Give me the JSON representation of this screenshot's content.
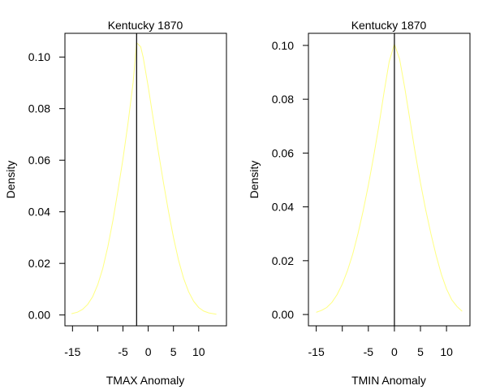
{
  "chart_data": [
    {
      "type": "line",
      "title": "Kentucky 1870",
      "xlabel": "TMAX Anomaly",
      "ylabel": "Density",
      "xlim": [
        -16.5,
        15.5
      ],
      "ylim": [
        -0.0042,
        0.1092
      ],
      "x_ticks": [
        -15,
        -10,
        -5,
        0,
        5,
        10
      ],
      "x_tick_labels": [
        "-15",
        "",
        "-5",
        "0",
        "5",
        "10"
      ],
      "y_ticks": [
        0.0,
        0.02,
        0.04,
        0.06,
        0.08,
        0.1
      ],
      "y_tick_labels": [
        "0.00",
        "0.02",
        "0.04",
        "0.06",
        "0.08",
        "0.10"
      ],
      "vline_x": -2.3,
      "curve_color": "#ffff80",
      "series": [
        {
          "x": [
            -15.2,
            -14,
            -13,
            -12,
            -11,
            -10,
            -9,
            -8,
            -7,
            -6,
            -5,
            -4,
            -3,
            -2.3,
            -1.5,
            -1,
            0,
            1,
            2,
            3,
            4,
            5,
            6,
            7,
            8,
            9,
            10,
            11,
            12,
            13.5
          ],
          "values": [
            0.0005,
            0.0011,
            0.0022,
            0.0041,
            0.0071,
            0.0117,
            0.018,
            0.0265,
            0.0366,
            0.0482,
            0.0605,
            0.0743,
            0.0901,
            0.1055,
            0.104,
            0.0999,
            0.0885,
            0.076,
            0.0635,
            0.0515,
            0.0403,
            0.0301,
            0.0213,
            0.0143,
            0.009,
            0.0053,
            0.0029,
            0.0015,
            0.0008,
            0.0003
          ]
        }
      ]
    },
    {
      "type": "line",
      "title": "Kentucky 1870",
      "xlabel": "TMIN Anomaly",
      "ylabel": "Density",
      "xlim": [
        -16.5,
        14.5
      ],
      "ylim": [
        -0.0042,
        0.1045
      ],
      "x_ticks": [
        -15,
        -10,
        -5,
        0,
        5,
        10
      ],
      "x_tick_labels": [
        "-15",
        "",
        "-5",
        "0",
        "5",
        "10"
      ],
      "y_ticks": [
        0.0,
        0.02,
        0.04,
        0.06,
        0.08,
        0.1
      ],
      "y_tick_labels": [
        "0.00",
        "0.02",
        "0.04",
        "0.06",
        "0.08",
        "0.10"
      ],
      "vline_x": 0,
      "curve_color": "#ffff80",
      "series": [
        {
          "x": [
            -15,
            -14,
            -13,
            -12,
            -11,
            -10,
            -9,
            -8,
            -7,
            -6,
            -5,
            -4,
            -3,
            -2,
            -1,
            0,
            1,
            2,
            3,
            4,
            5,
            6,
            7,
            8,
            9,
            10,
            11,
            12,
            13
          ],
          "values": [
            0.0008,
            0.0015,
            0.0026,
            0.0045,
            0.0074,
            0.0113,
            0.0163,
            0.0225,
            0.03,
            0.0385,
            0.048,
            0.0585,
            0.07,
            0.0825,
            0.094,
            0.1005,
            0.095,
            0.084,
            0.072,
            0.06,
            0.049,
            0.039,
            0.03,
            0.022,
            0.015,
            0.0095,
            0.0055,
            0.003,
            0.0012
          ]
        }
      ]
    }
  ]
}
